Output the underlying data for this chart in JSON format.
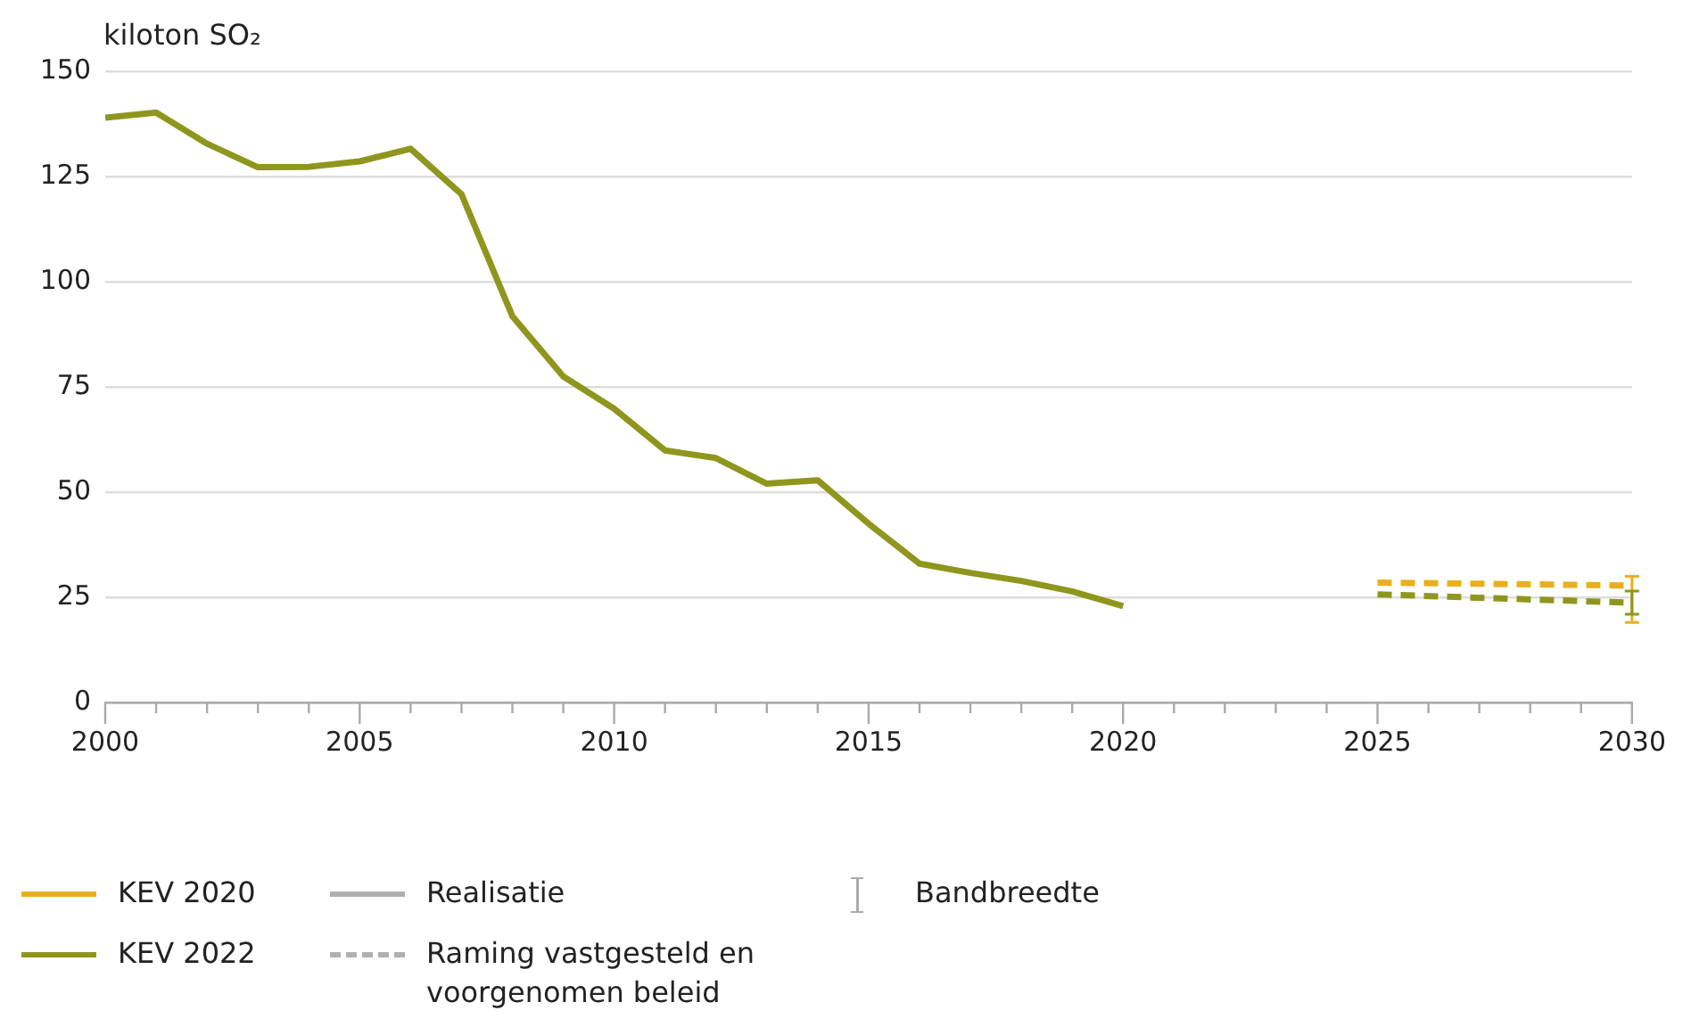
{
  "chart_data": {
    "type": "line",
    "ylabel": "kiloton SO₂",
    "xlim": [
      2000,
      2030
    ],
    "xticks": [
      2000,
      {
        "value": 2001,
        "label": null
      },
      {
        "value": 2002,
        "label": null
      },
      {
        "value": 2003,
        "label": null
      },
      {
        "value": 2004,
        "label": null
      },
      2005,
      {
        "value": 2006,
        "label": null
      },
      {
        "value": 2007,
        "label": null
      },
      {
        "value": 2008,
        "label": null
      },
      {
        "value": 2009,
        "label": null
      },
      2010,
      {
        "value": 2011,
        "label": null
      },
      {
        "value": 2012,
        "label": null
      },
      {
        "value": 2013,
        "label": null
      },
      {
        "value": 2014,
        "label": null
      },
      2015,
      {
        "value": 2016,
        "label": null
      },
      {
        "value": 2017,
        "label": null
      },
      {
        "value": 2018,
        "label": null
      },
      {
        "value": 2019,
        "label": null
      },
      2020,
      {
        "value": 2021,
        "label": null
      },
      {
        "value": 2022,
        "label": null
      },
      {
        "value": 2023,
        "label": null
      },
      {
        "value": 2024,
        "label": null
      },
      2025,
      {
        "value": 2026,
        "label": null
      },
      {
        "value": 2027,
        "label": null
      },
      {
        "value": 2028,
        "label": null
      },
      {
        "value": 2029,
        "label": null
      },
      2030
    ],
    "ylim": [
      0,
      150
    ],
    "yticks": [
      0,
      25,
      50,
      75,
      100,
      125,
      150
    ],
    "grid": "y",
    "legend": "bottom",
    "series": [
      {
        "name": "KEV 2020",
        "color": "#e8b01e",
        "line_style": "dashed",
        "x": [
          2025,
          2030
        ],
        "values": [
          28.5,
          27.8
        ],
        "errors": [
          null,
          [
            19,
            30
          ]
        ]
      },
      {
        "name": "KEV 2022",
        "color": "#8f961d",
        "line_style": "solid",
        "x": [
          2000,
          2001,
          2002,
          2003,
          2004,
          2005,
          2006,
          2007,
          2008,
          2009,
          2010,
          2011,
          2012,
          2013,
          2014,
          2015,
          2016,
          2017,
          2018,
          2019,
          2020
        ],
        "values": [
          139,
          140.2,
          132.8,
          127.2,
          127.3,
          128.6,
          131.6,
          120.8,
          91.8,
          77.5,
          69.8,
          59.9,
          58.1,
          52,
          52.8,
          42.5,
          33,
          30.8,
          28.9,
          26.4,
          22.9
        ]
      },
      {
        "color": "#8f961d",
        "line_style": "dashed",
        "x": [
          2025,
          2030
        ],
        "values": [
          25.7,
          23.7
        ],
        "errors": [
          null,
          [
            21,
            26.5
          ]
        ]
      }
    ],
    "annotations": [
      "Realisatie",
      "Raming vastgesteld en voorgenomen beleid",
      "Bandbreedte"
    ]
  }
}
